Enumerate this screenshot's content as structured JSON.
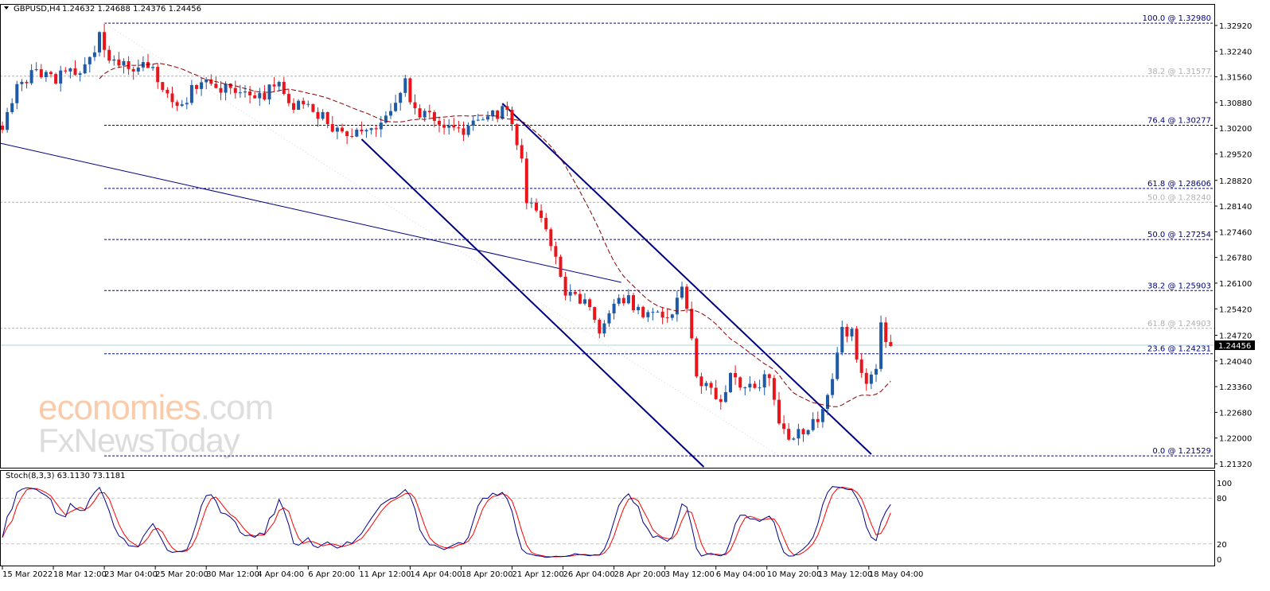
{
  "header": {
    "symbol": "GBPUSD,H4",
    "ohlc": "1.24632 1.24688 1.24376 1.24456"
  },
  "watermark": {
    "part1": "economies",
    "part2": ".com",
    "line2": "FxNewsToday"
  },
  "colors": {
    "bull": "#1f5aa6",
    "bear": "#e8161c",
    "fib": "#000080",
    "fib_old": "#b0b0b0",
    "channel": "#000080",
    "ma": "#8b0000",
    "stoch_main": "#00008b",
    "stoch_signal": "#ff0000",
    "price_line": "#a9d4e0"
  },
  "chart_data": {
    "type": "candlestick",
    "title": "GBPUSD,H4",
    "ylim": [
      1.2132,
      1.3292
    ],
    "price_ticks": [
      "1.32920",
      "1.32240",
      "1.31560",
      "1.30880",
      "1.30200",
      "1.29520",
      "1.28820",
      "1.28140",
      "1.27460",
      "1.26780",
      "1.26100",
      "1.25420",
      "1.24720",
      "1.24040",
      "1.23360",
      "1.22680",
      "1.22000",
      "1.21320"
    ],
    "current_price": "1.24456",
    "time_ticks": [
      "15 Mar 2022",
      "18 Mar 12:00",
      "23 Mar 04:00",
      "25 Mar 20:00",
      "30 Mar 12:00",
      "4 Apr 04:00",
      "6 Apr 20:00",
      "11 Apr 12:00",
      "14 Apr 04:00",
      "18 Apr 20:00",
      "21 Apr 12:00",
      "26 Apr 04:00",
      "28 Apr 20:00",
      "3 May 12:00",
      "6 May 04:00",
      "10 May 20:00",
      "13 May 12:00",
      "18 May 04:00"
    ],
    "bars_per_time_tick": 21,
    "close_path": [
      [
        1,
        1.30436
      ],
      [
        6,
        1.31278
      ],
      [
        12,
        1.31699
      ],
      [
        19,
        1.31488
      ],
      [
        25,
        1.31594
      ],
      [
        32,
        1.31699
      ],
      [
        37,
        1.3212
      ],
      [
        40,
        1.32646
      ],
      [
        43,
        1.32015
      ],
      [
        51,
        1.31804
      ],
      [
        58,
        1.31909
      ],
      [
        65,
        1.31488
      ],
      [
        70,
        1.30857
      ],
      [
        74,
        1.30752
      ],
      [
        81,
        1.31488
      ],
      [
        88,
        1.31278
      ],
      [
        97,
        1.31173
      ],
      [
        107,
        1.31067
      ],
      [
        114,
        1.31383
      ],
      [
        117,
        1.30752
      ],
      [
        127,
        1.30752
      ],
      [
        137,
        1.30225
      ],
      [
        143,
        1.3012
      ],
      [
        153,
        1.30225
      ],
      [
        160,
        1.30646
      ],
      [
        163,
        1.31173
      ],
      [
        166,
        1.31383
      ],
      [
        170,
        1.30646
      ],
      [
        179,
        1.30436
      ],
      [
        186,
        1.3012
      ],
      [
        192,
        1.30225
      ],
      [
        199,
        1.30436
      ],
      [
        206,
        1.30646
      ],
      [
        210,
        1.30436
      ],
      [
        214,
        1.29383
      ],
      [
        215,
        1.28331
      ],
      [
        220,
        1.27909
      ],
      [
        225,
        1.27278
      ],
      [
        229,
        1.26646
      ],
      [
        232,
        1.25804
      ],
      [
        237,
        1.25699
      ],
      [
        242,
        1.25383
      ],
      [
        245,
        1.24752
      ],
      [
        250,
        1.25383
      ],
      [
        255,
        1.25804
      ],
      [
        260,
        1.25488
      ],
      [
        265,
        1.25278
      ],
      [
        271,
        1.25383
      ],
      [
        276,
        1.25173
      ],
      [
        279,
        1.26225
      ],
      [
        283,
        1.25173
      ],
      [
        286,
        1.23488
      ],
      [
        291,
        1.23383
      ],
      [
        297,
        1.22857
      ],
      [
        300,
        1.23699
      ],
      [
        305,
        1.23278
      ],
      [
        310,
        1.23278
      ],
      [
        315,
        1.23699
      ],
      [
        319,
        1.22646
      ],
      [
        324,
        1.22015
      ],
      [
        327,
        1.2212
      ],
      [
        332,
        1.22225
      ],
      [
        337,
        1.22646
      ],
      [
        340,
        1.23067
      ],
      [
        343,
        1.23909
      ],
      [
        345,
        1.24752
      ],
      [
        350,
        1.24857
      ],
      [
        353,
        1.23699
      ],
      [
        356,
        1.23488
      ],
      [
        360,
        1.23909
      ],
      [
        362,
        1.24962
      ],
      [
        366,
        1.24436
      ]
    ],
    "moving_average": {
      "style": "dashed"
    },
    "fibonacci_current": [
      {
        "label": "100.0 @ 1.32980",
        "price": 1.3298
      },
      {
        "label": "76.4 @ 1.30277",
        "price": 1.30277
      },
      {
        "label": "61.8 @ 1.28606",
        "price": 1.28606
      },
      {
        "label": "50.0 @ 1.27254",
        "price": 1.27254
      },
      {
        "label": "38.2 @ 1.25903",
        "price": 1.25903
      },
      {
        "label": "23.6 @ 1.24231",
        "price": 1.24231
      },
      {
        "label": "0.0 @ 1.21529",
        "price": 1.21529
      }
    ],
    "fibonacci_previous": [
      {
        "label": "38.2 @ 1.31577",
        "price": 1.31577
      },
      {
        "label": "50.0 @ 1.28240",
        "price": 1.2824
      },
      {
        "label": "61.8 @ 1.24903",
        "price": 1.24903
      }
    ],
    "trendlines": [
      {
        "name": "channel-upper",
        "from": [
          206,
          1.30857
        ],
        "to": [
          358,
          1.21573
        ],
        "weight": "thick"
      },
      {
        "name": "channel-lower",
        "from": [
          148,
          1.29909
        ],
        "to": [
          289,
          1.21236
        ],
        "weight": "thick"
      },
      {
        "name": "long-trendline",
        "from": [
          -1,
          1.29804
        ],
        "to": [
          255,
          1.2612
        ],
        "weight": "thin"
      }
    ],
    "stochastic": {
      "label": "Stoch(8,3,3) 63.1130 73.1181",
      "levels": [
        "80",
        "20"
      ],
      "scale": [
        "100",
        "80",
        "20",
        "0"
      ],
      "ylim": [
        0,
        100
      ]
    }
  }
}
